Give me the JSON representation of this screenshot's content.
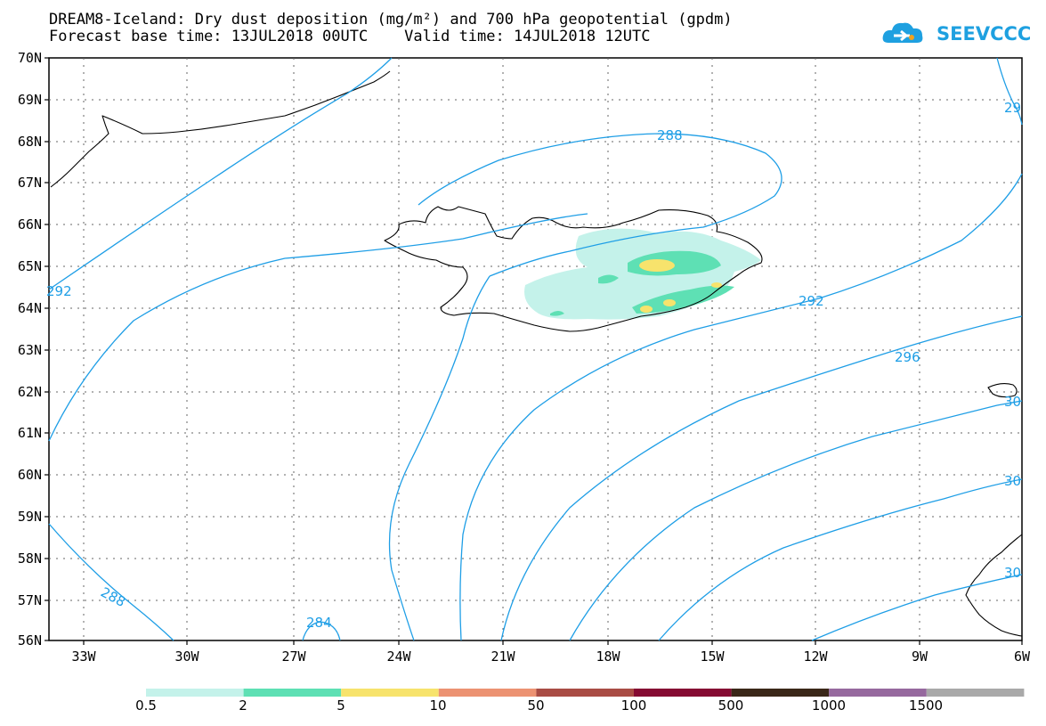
{
  "title": {
    "line1": "DREAM8-Iceland: Dry dust deposition (mg/m²) and 700 hPa geopotential (gpdm)",
    "line2": "Forecast base time: 13JUL2018 00UTC    Valid time: 14JUL2018 12UTC"
  },
  "logo": {
    "text": "SEEVCCC",
    "color": "#1ea0e0"
  },
  "axes": {
    "lat_labels": [
      "70N",
      "69N",
      "68N",
      "67N",
      "66N",
      "65N",
      "64N",
      "63N",
      "62N",
      "61N",
      "60N",
      "59N",
      "58N",
      "57N",
      "56N"
    ],
    "lon_labels": [
      "33W",
      "30W",
      "27W",
      "24W",
      "21W",
      "18W",
      "15W",
      "12W",
      "9W",
      "6W"
    ]
  },
  "contour_labels": [
    "288",
    "292",
    "296",
    "30",
    "30",
    "30",
    "292",
    "29",
    "288",
    "284"
  ],
  "contour_color": "#1e9ee6",
  "colorbar": {
    "colors": [
      "#c4f2ea",
      "#5ee0b4",
      "#f7e36c",
      "#ec9272",
      "#a94c44",
      "#850a32",
      "#3a2718",
      "#96699e",
      "#a9a9a9"
    ],
    "labels": [
      "0.5",
      "2",
      "5",
      "10",
      "50",
      "100",
      "500",
      "1000",
      "1500"
    ]
  }
}
